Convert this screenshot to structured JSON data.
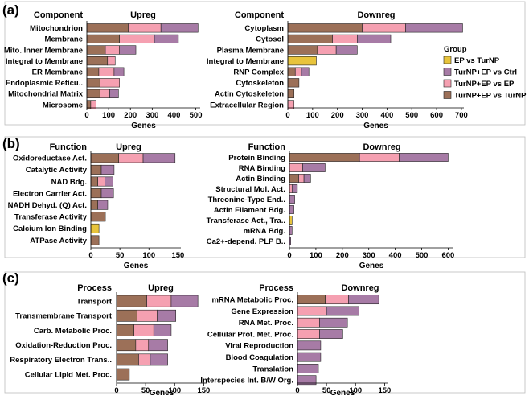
{
  "colors": {
    "EP vs TurNP": "#e8c43c",
    "TurNP+EP vs Ctrl": "#a77ba6",
    "TurNP+EP vs EP": "#f5a0b1",
    "TurNP+EP vs TurNP": "#9c7058"
  },
  "legend": {
    "title": "Group",
    "entries": [
      "EP vs TurNP",
      "TurNP+EP vs Ctrl",
      "TurNP+EP vs EP",
      "TurNP+EP vs TurNP"
    ]
  },
  "chart_data": [
    {
      "type": "bar",
      "orientation": "horizontal",
      "stacked": true,
      "panel": "(a)",
      "category_header": "Component",
      "title": "Upreg",
      "xlabel": "Genes",
      "xlim": [
        0,
        520
      ],
      "xticks": [
        0,
        100,
        200,
        300,
        400,
        500
      ],
      "categories": [
        "Mitochondrion",
        "Membrane",
        "Mito. Inner Membrane",
        "Integral to Membrane",
        "ER Membrane",
        "Endoplasmic Reticu..",
        "Mitochondrial Matrix",
        "Microsome"
      ],
      "series": [
        {
          "name": "TurNP+EP vs TurNP",
          "values": [
            190,
            150,
            85,
            95,
            55,
            60,
            60,
            18
          ]
        },
        {
          "name": "TurNP+EP vs EP",
          "values": [
            150,
            160,
            65,
            35,
            70,
            90,
            45,
            25
          ]
        },
        {
          "name": "TurNP+EP vs Ctrl",
          "values": [
            170,
            110,
            75,
            0,
            45,
            0,
            40,
            0
          ]
        },
        {
          "name": "EP vs TurNP",
          "values": [
            0,
            0,
            0,
            0,
            0,
            0,
            0,
            0
          ]
        }
      ]
    },
    {
      "type": "bar",
      "orientation": "horizontal",
      "stacked": true,
      "panel": "(a)",
      "category_header": "Component",
      "title": "Downreg",
      "xlabel": "Genes",
      "xlim": [
        0,
        710
      ],
      "xticks": [
        0,
        100,
        200,
        300,
        400,
        500,
        600,
        700
      ],
      "categories": [
        "Cytoplasm",
        "Cytosol",
        "Plasma Membrane",
        "Integral to Membrane",
        "RNP Complex",
        "Cytoskeleton",
        "Actin Cytoskeleton",
        "Extracellular Region"
      ],
      "series": [
        {
          "name": "TurNP+EP vs TurNP",
          "values": [
            300,
            180,
            120,
            0,
            30,
            45,
            25,
            0
          ]
        },
        {
          "name": "TurNP+EP vs EP",
          "values": [
            175,
            100,
            75,
            0,
            25,
            0,
            0,
            25
          ]
        },
        {
          "name": "TurNP+EP vs Ctrl",
          "values": [
            230,
            135,
            85,
            0,
            30,
            0,
            0,
            0
          ]
        },
        {
          "name": "EP vs TurNP",
          "values": [
            0,
            0,
            0,
            115,
            0,
            0,
            0,
            0
          ]
        }
      ]
    },
    {
      "type": "bar",
      "orientation": "horizontal",
      "stacked": true,
      "panel": "(b)",
      "category_header": "Function",
      "title": "Upreg",
      "xlabel": "Genes",
      "xlim": [
        0,
        155
      ],
      "xticks": [
        0,
        50,
        100,
        150
      ],
      "categories": [
        "Oxidoreductase Act.",
        "Catalytic Activity",
        "NAD Bdg.",
        "Electron Carrier Act.",
        "NADH Dehyd. (Q) Act.",
        "Transferase Activity",
        "Calcium Ion Binding",
        "ATPase Activity"
      ],
      "series": [
        {
          "name": "TurNP+EP vs TurNP",
          "values": [
            48,
            18,
            12,
            18,
            12,
            25,
            0,
            14
          ]
        },
        {
          "name": "TurNP+EP vs EP",
          "values": [
            42,
            0,
            12,
            0,
            0,
            0,
            0,
            0
          ]
        },
        {
          "name": "TurNP+EP vs Ctrl",
          "values": [
            55,
            22,
            14,
            21,
            17,
            0,
            0,
            0
          ]
        },
        {
          "name": "EP vs TurNP",
          "values": [
            0,
            0,
            0,
            0,
            0,
            0,
            14,
            0
          ]
        }
      ]
    },
    {
      "type": "bar",
      "orientation": "horizontal",
      "stacked": true,
      "panel": "(b)",
      "category_header": "Function",
      "title": "Downreg",
      "xlabel": "Genes",
      "xlim": [
        0,
        620
      ],
      "xticks": [
        0,
        100,
        200,
        300,
        400,
        500,
        600
      ],
      "categories": [
        "Protein Binding",
        "RNA Binding",
        "Actin Binding",
        "Structural Mol. Act.",
        "Threonine-Type End..",
        "Actin Filament Bdg.",
        "Transferase Act., Tra..",
        "mRNA Bdg.",
        "Ca2+-depend. PLP B.."
      ],
      "series": [
        {
          "name": "TurNP+EP vs TurNP",
          "values": [
            265,
            0,
            35,
            0,
            0,
            0,
            0,
            0,
            0
          ]
        },
        {
          "name": "TurNP+EP vs EP",
          "values": [
            150,
            50,
            20,
            10,
            0,
            0,
            0,
            0,
            0
          ]
        },
        {
          "name": "TurNP+EP vs Ctrl",
          "values": [
            185,
            85,
            25,
            20,
            20,
            17,
            0,
            10,
            5
          ]
        },
        {
          "name": "EP vs TurNP",
          "values": [
            0,
            0,
            0,
            0,
            0,
            0,
            10,
            0,
            0
          ]
        }
      ]
    },
    {
      "type": "bar",
      "orientation": "horizontal",
      "stacked": true,
      "panel": "(c)",
      "category_header": "Process",
      "title": "Upreg",
      "xlabel": "Genes",
      "xlim": [
        0,
        155
      ],
      "xticks": [
        0,
        50,
        100,
        150
      ],
      "categories": [
        "Transport",
        "Transmembrane Transport",
        "Carb. Metabolic Proc.",
        "Oxidation-Reduction Proc.",
        "Respiratory Electron Trans..",
        "Cellular Lipid Met. Proc."
      ],
      "series": [
        {
          "name": "TurNP+EP vs TurNP",
          "values": [
            52,
            35,
            30,
            33,
            38,
            22
          ]
        },
        {
          "name": "TurNP+EP vs EP",
          "values": [
            42,
            35,
            34,
            22,
            20,
            0
          ]
        },
        {
          "name": "TurNP+EP vs Ctrl",
          "values": [
            46,
            32,
            30,
            33,
            30,
            0
          ]
        },
        {
          "name": "EP vs TurNP",
          "values": [
            0,
            0,
            0,
            0,
            0,
            0
          ]
        }
      ]
    },
    {
      "type": "bar",
      "orientation": "horizontal",
      "stacked": true,
      "panel": "(c)",
      "category_header": "Process",
      "title": "Downreg",
      "xlabel": "Genes",
      "xlim": [
        0,
        155
      ],
      "xticks": [
        0,
        50,
        100,
        150
      ],
      "categories": [
        "mRNA Metabolic Proc.",
        "Gene Expression",
        "RNA Met. Proc.",
        "Cellular Prot. Met. Proc.",
        "Viral Reproduction",
        "Blood Coagulation",
        "Translation",
        "Interspecies Int. B/W Org."
      ],
      "series": [
        {
          "name": "TurNP+EP vs TurNP",
          "values": [
            48,
            0,
            0,
            0,
            0,
            0,
            0,
            0
          ]
        },
        {
          "name": "TurNP+EP vs EP",
          "values": [
            40,
            50,
            38,
            38,
            0,
            0,
            0,
            0
          ]
        },
        {
          "name": "TurNP+EP vs Ctrl",
          "values": [
            52,
            56,
            48,
            40,
            40,
            40,
            36,
            32
          ]
        },
        {
          "name": "EP vs TurNP",
          "values": [
            0,
            0,
            0,
            0,
            0,
            0,
            0,
            0
          ]
        }
      ]
    }
  ]
}
